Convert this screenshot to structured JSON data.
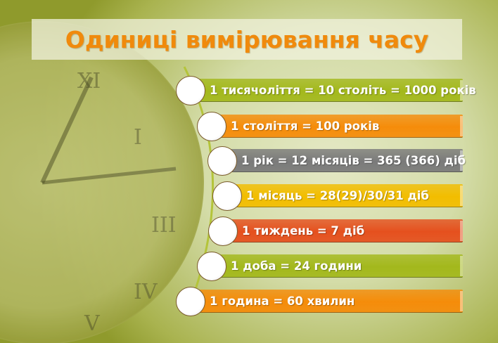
{
  "title": "Одиниці вимірювання часу",
  "items": [
    {
      "label": "1 тисячоліття = 10 століть = 1000 років",
      "color": "#a3b81c"
    },
    {
      "label": "1 століття = 100 років",
      "color": "#f58c0a"
    },
    {
      "label": "1 рік = 12 місяців = 365 (366) діб",
      "color": "#7a7a7a"
    },
    {
      "label": "1 місяць = 28(29)/30/31 діб",
      "color": "#f2bd00"
    },
    {
      "label": "1 тиждень = 7 діб",
      "color": "#e5501e"
    },
    {
      "label": "1 доба = 24 години",
      "color": "#a3b81c"
    },
    {
      "label": "1 година = 60 хвилин",
      "color": "#f58c0a"
    }
  ]
}
